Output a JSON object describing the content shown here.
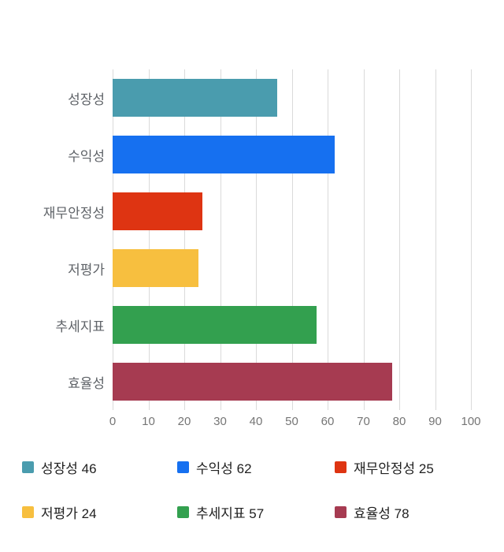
{
  "chart_data": {
    "type": "bar",
    "orientation": "horizontal",
    "title": "",
    "categories": [
      "성장성",
      "수익성",
      "재무안정성",
      "저평가",
      "추세지표",
      "효율성"
    ],
    "values": [
      46,
      62,
      25,
      24,
      57,
      78
    ],
    "colors": [
      "#4a9cae",
      "#1670f0",
      "#de3412",
      "#f7bf3f",
      "#33a04f",
      "#a63b51"
    ],
    "xlim": [
      0,
      100
    ],
    "xticks": [
      0,
      10,
      20,
      30,
      40,
      50,
      60,
      70,
      80,
      90,
      100
    ],
    "grid": true,
    "legend_position": "bottom",
    "legend": [
      {
        "label": "성장성 46",
        "color": "#4a9cae"
      },
      {
        "label": "수익성 62",
        "color": "#1670f0"
      },
      {
        "label": "재무안정성 25",
        "color": "#de3412"
      },
      {
        "label": "저평가 24",
        "color": "#f7bf3f"
      },
      {
        "label": "추세지표 57",
        "color": "#33a04f"
      },
      {
        "label": "효율성 78",
        "color": "#a63b51"
      }
    ]
  }
}
